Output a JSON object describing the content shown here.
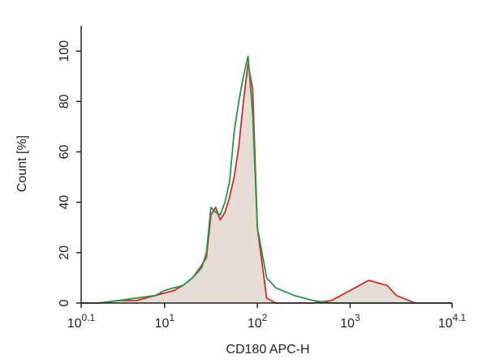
{
  "chart_data": {
    "type": "line",
    "x_label": "CD180 APC-H",
    "y_label": "Count [%]",
    "xscale": "log",
    "xlim": [
      1.259,
      12589
    ],
    "xticks": [
      {
        "value": 1.259,
        "label": "10",
        "sup": "0.1"
      },
      {
        "value": 10,
        "label": "10",
        "sup": "1"
      },
      {
        "value": 100,
        "label": "10",
        "sup": "2"
      },
      {
        "value": 1000,
        "label": "10",
        "sup": "3"
      },
      {
        "value": 12589,
        "label": "10",
        "sup": "4.1"
      }
    ],
    "ylim": [
      0,
      110
    ],
    "yticks": [
      0,
      20,
      40,
      60,
      80,
      100
    ],
    "fill_color": "#e6ddd4",
    "x": [
      1.26,
      2,
      3.16,
      5.01,
      7.94,
      10,
      12.6,
      15.8,
      20,
      25.1,
      28.2,
      31.6,
      35.5,
      39.8,
      44.7,
      50.1,
      56.2,
      63.1,
      70.8,
      79.4,
      89.1,
      100,
      126,
      158,
      251,
      398,
      631,
      794,
      1000,
      1259,
      1585,
      1995,
      2512,
      3162,
      5012,
      12589
    ],
    "series": [
      {
        "name": "red",
        "color": "#d42a2a",
        "filled": true,
        "values": [
          0,
          0,
          1,
          1,
          3,
          4,
          5,
          7,
          10,
          15,
          18,
          35,
          38,
          33,
          36,
          42,
          50,
          62,
          80,
          95,
          85,
          30,
          2,
          0,
          0,
          0,
          1,
          3,
          5,
          7,
          9,
          8,
          7,
          3,
          0,
          0
        ]
      },
      {
        "name": "green",
        "color": "#1f9a4a",
        "filled": false,
        "values": [
          0,
          0,
          1,
          2,
          3,
          5,
          6,
          7,
          10,
          14,
          20,
          38,
          36,
          35,
          40,
          48,
          68,
          80,
          90,
          98,
          75,
          30,
          10,
          6,
          3,
          1,
          0,
          0,
          0,
          0,
          0,
          0,
          0,
          0,
          0,
          0
        ]
      }
    ]
  }
}
